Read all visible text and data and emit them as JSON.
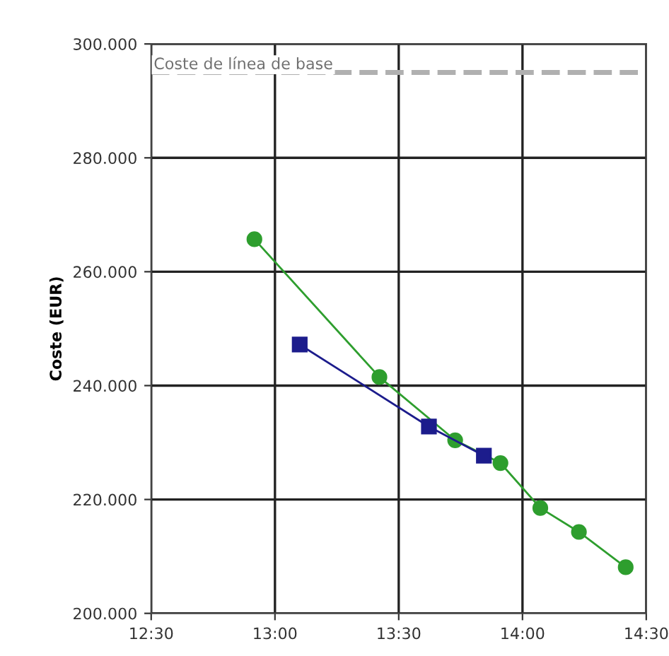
{
  "chart_data": {
    "type": "line",
    "ylabel": "Coste (EUR)",
    "xlim": [
      12.5,
      14.5
    ],
    "ylim": [
      200000,
      300000
    ],
    "xticks": [
      {
        "value": 12.5,
        "label": "12:30"
      },
      {
        "value": 13,
        "label": "13:00"
      },
      {
        "value": 13.5,
        "label": "13:30"
      },
      {
        "value": 14,
        "label": "14:00"
      },
      {
        "value": 14.5,
        "label": "14:30"
      }
    ],
    "yticks": [
      {
        "value": 200000,
        "label": "200.000"
      },
      {
        "value": 220000,
        "label": "220.000"
      },
      {
        "value": 240000,
        "label": "240.000"
      },
      {
        "value": 260000,
        "label": "260.000"
      },
      {
        "value": 280000,
        "label": "280.000"
      },
      {
        "value": 300000,
        "label": "300.000"
      }
    ],
    "grid": true,
    "legend": false,
    "line_style": "solid",
    "series": [
      {
        "color": "#2e9e2e",
        "marker": "circle",
        "x": [
          12.917,
          13.422,
          13.728,
          13.911,
          14.072,
          14.228,
          14.417
        ],
        "values": [
          265700,
          241500,
          230400,
          226400,
          218500,
          214300,
          208100
        ]
      },
      {
        "color": "#1c1c8c",
        "marker": "square",
        "x": [
          13.1,
          13.622,
          13.844
        ],
        "values": [
          247200,
          232800,
          227700
        ]
      }
    ],
    "ref_lines": [
      {
        "axis": "y",
        "value": 295000,
        "label": "Coste de línea de base",
        "color": "#b0b0b0",
        "line_style": "dashed"
      }
    ]
  }
}
